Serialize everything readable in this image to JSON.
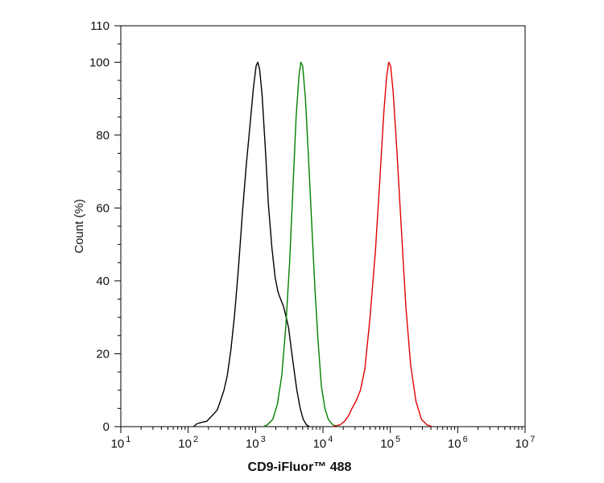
{
  "chart_data": {
    "type": "line",
    "title": "",
    "xlabel": "CD9-iFluor™ 488",
    "ylabel": "Count  (%)",
    "x_scale": "log",
    "xlim": [
      10,
      10000000
    ],
    "ylim": [
      0,
      110
    ],
    "grid": false,
    "legend": "none",
    "x_ticks": [
      {
        "value": 10,
        "base": "10",
        "exp": "1"
      },
      {
        "value": 100,
        "base": "10",
        "exp": "2"
      },
      {
        "value": 1000,
        "base": "10",
        "exp": "3"
      },
      {
        "value": 10000,
        "base": "10",
        "exp": "4"
      },
      {
        "value": 100000,
        "base": "10",
        "exp": "5"
      },
      {
        "value": 1000000,
        "base": "10",
        "exp": "6"
      },
      {
        "value": 10000000,
        "base": "10",
        "exp": "7"
      }
    ],
    "y_ticks": [
      {
        "value": 0,
        "label": "0"
      },
      {
        "value": 20,
        "label": "20"
      },
      {
        "value": 40,
        "label": "40"
      },
      {
        "value": 60,
        "label": "60"
      },
      {
        "value": 80,
        "label": "80"
      },
      {
        "value": 100,
        "label": "100"
      },
      {
        "value": 110,
        "label": "110"
      }
    ],
    "series": [
      {
        "color": "#000000",
        "points": [
          [
            120,
            0
          ],
          [
            135,
            0.8
          ],
          [
            160,
            1.2
          ],
          [
            190,
            1.5
          ],
          [
            215,
            2.6
          ],
          [
            240,
            3.5
          ],
          [
            270,
            4.6
          ],
          [
            300,
            7
          ],
          [
            340,
            10
          ],
          [
            380,
            14
          ],
          [
            430,
            21
          ],
          [
            490,
            31
          ],
          [
            560,
            44
          ],
          [
            640,
            59
          ],
          [
            730,
            72
          ],
          [
            830,
            83
          ],
          [
            930,
            93
          ],
          [
            1020,
            99
          ],
          [
            1080,
            100
          ],
          [
            1150,
            98
          ],
          [
            1250,
            91
          ],
          [
            1400,
            76
          ],
          [
            1550,
            61
          ],
          [
            1750,
            49
          ],
          [
            1950,
            41
          ],
          [
            2150,
            37
          ],
          [
            2350,
            35
          ],
          [
            2600,
            33
          ],
          [
            2850,
            30
          ],
          [
            3100,
            27
          ],
          [
            3350,
            22
          ],
          [
            3700,
            16
          ],
          [
            4100,
            10
          ],
          [
            4600,
            5
          ],
          [
            5100,
            2
          ],
          [
            5700,
            0.5
          ],
          [
            6300,
            0
          ]
        ]
      },
      {
        "color": "#008000",
        "points": [
          [
            1300,
            0
          ],
          [
            1500,
            0.5
          ],
          [
            1800,
            2
          ],
          [
            2100,
            6
          ],
          [
            2450,
            14
          ],
          [
            2800,
            27
          ],
          [
            3200,
            45
          ],
          [
            3600,
            66
          ],
          [
            4000,
            85
          ],
          [
            4400,
            96
          ],
          [
            4700,
            100
          ],
          [
            5000,
            99
          ],
          [
            5500,
            90
          ],
          [
            6100,
            74
          ],
          [
            6800,
            56
          ],
          [
            7600,
            38
          ],
          [
            8500,
            23
          ],
          [
            9500,
            11
          ],
          [
            10700,
            5
          ],
          [
            12000,
            2
          ],
          [
            14000,
            0.5
          ],
          [
            17000,
            0
          ]
        ]
      },
      {
        "color": "#e00000",
        "points": [
          [
            14000,
            0
          ],
          [
            18000,
            0.5
          ],
          [
            21000,
            1.5
          ],
          [
            24000,
            3
          ],
          [
            27000,
            5
          ],
          [
            31000,
            7
          ],
          [
            36000,
            10
          ],
          [
            42000,
            16
          ],
          [
            50000,
            30
          ],
          [
            60000,
            48
          ],
          [
            70000,
            68
          ],
          [
            80000,
            86
          ],
          [
            88000,
            96
          ],
          [
            95000,
            100
          ],
          [
            101000,
            99
          ],
          [
            110000,
            92
          ],
          [
            125000,
            76
          ],
          [
            145000,
            55
          ],
          [
            170000,
            33
          ],
          [
            200000,
            17
          ],
          [
            240000,
            7
          ],
          [
            290000,
            2
          ],
          [
            350000,
            0.5
          ],
          [
            420000,
            0
          ]
        ]
      }
    ]
  }
}
